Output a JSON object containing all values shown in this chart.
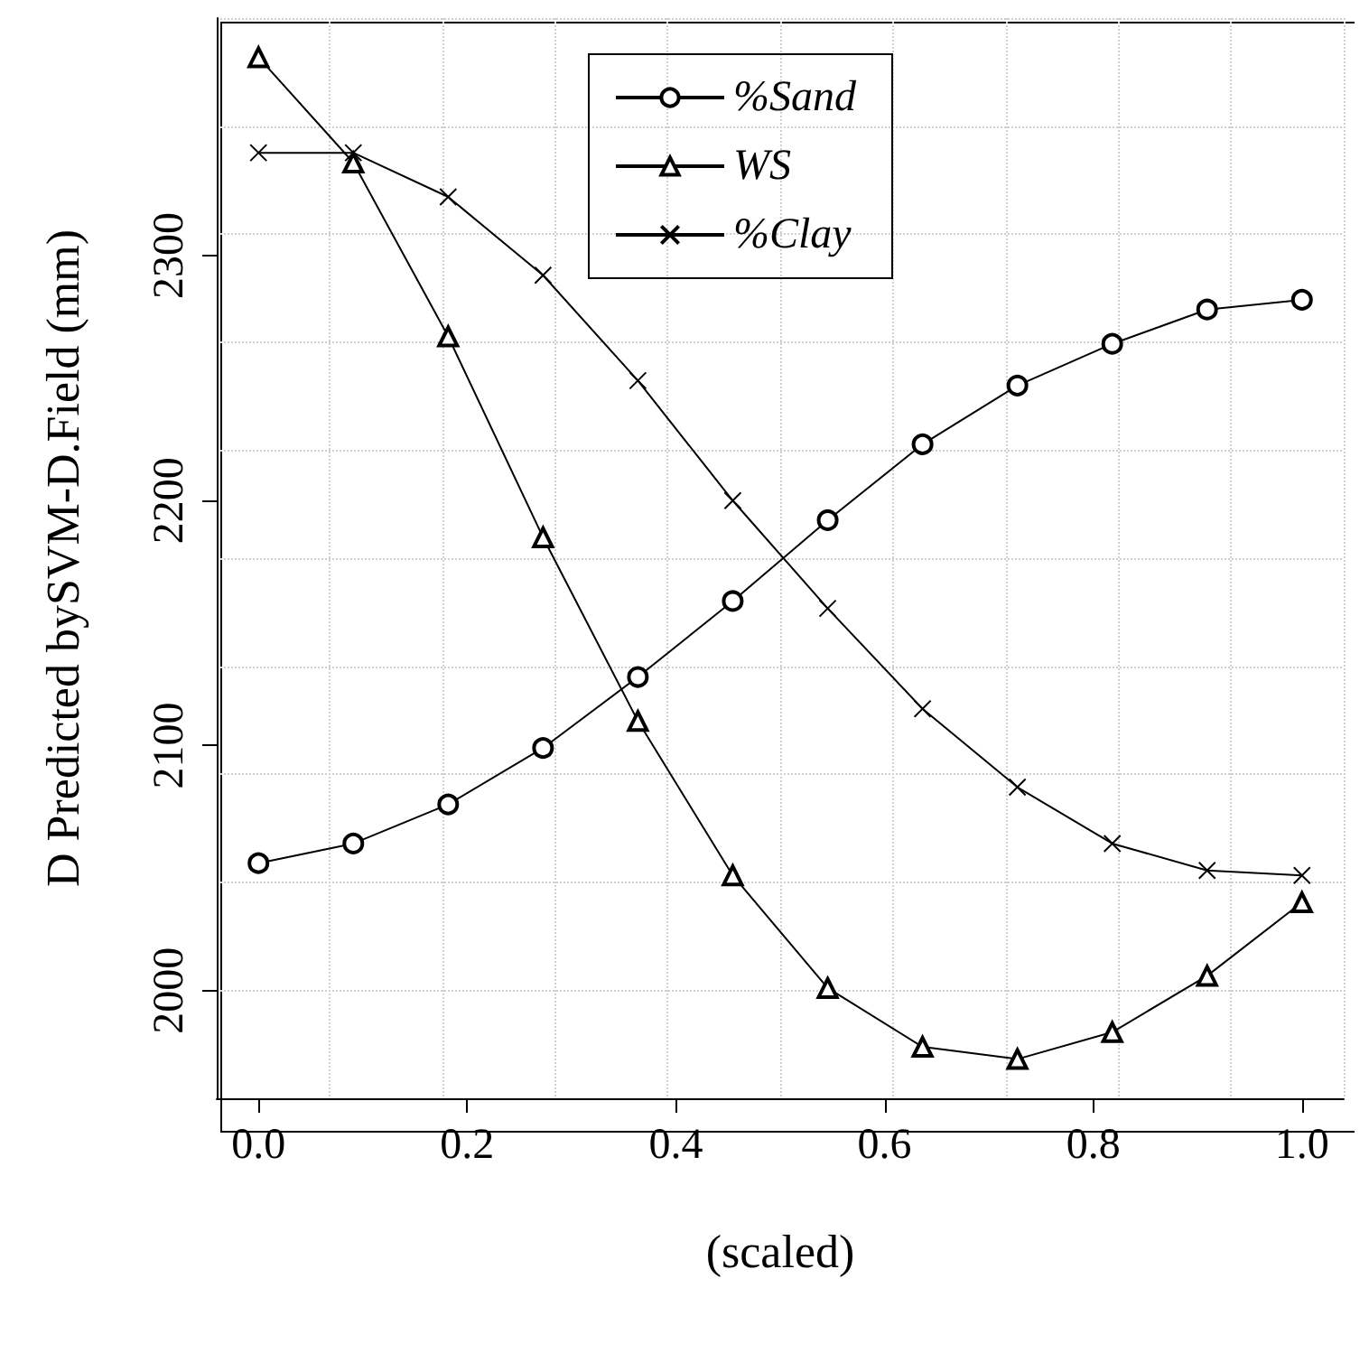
{
  "chart_data": {
    "type": "line",
    "xlabel": "(scaled)",
    "ylabel": "D Predicted bySVM-D.Field (mm)",
    "x": [
      0,
      0.0909,
      0.1818,
      0.2727,
      0.3636,
      0.4545,
      0.5455,
      0.6364,
      0.7273,
      0.8182,
      0.9091,
      1
    ],
    "series": [
      {
        "name": "%Sand",
        "color": "#000000",
        "marker": "circle",
        "values": [
          2052,
          2060,
          2076,
          2099,
          2128,
          2159,
          2192,
          2223,
          2247,
          2264,
          2278,
          2282
        ]
      },
      {
        "name": "WS",
        "color": "#000000",
        "marker": "triangle",
        "values": [
          2381,
          2338,
          2267,
          2185,
          2110,
          2047,
          2001,
          1977,
          1972,
          1983,
          2006,
          2036
        ]
      },
      {
        "name": "%Clay",
        "color": "#000000",
        "marker": "cross",
        "values": [
          2342,
          2342,
          2324,
          2292,
          2249,
          2200,
          2156,
          2115,
          2083,
          2060,
          2049,
          2047
        ]
      }
    ],
    "xlim": [
      -0.04,
      1.04
    ],
    "xticks": [
      {
        "value": 0,
        "label": "0.0"
      },
      {
        "value": 0.2,
        "label": "0.2"
      },
      {
        "value": 0.4,
        "label": "0.4"
      },
      {
        "value": 0.6,
        "label": "0.6"
      },
      {
        "value": 0.8,
        "label": "0.8"
      },
      {
        "value": 1,
        "label": "1.0"
      }
    ],
    "ylim": [
      1956,
      2397
    ],
    "yticks": [
      2000,
      2100,
      2200,
      2300
    ],
    "grid": true,
    "legend": "top",
    "line_style": "solid"
  }
}
